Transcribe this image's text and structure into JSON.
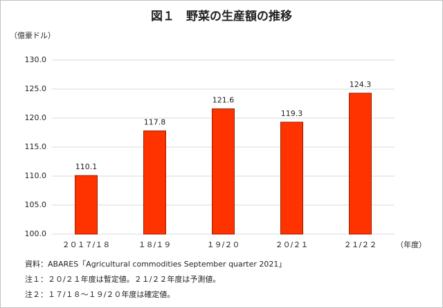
{
  "chart_data": {
    "type": "bar",
    "title": "図１　野菜の生産額の推移",
    "y_axis_label": "（億豪ドル）",
    "x_axis_label": "（年度）",
    "categories": [
      "２０１７/１８",
      "１８/１９",
      "１９/２０",
      "２０/２１",
      "２１/２２"
    ],
    "values": [
      110.1,
      117.8,
      121.6,
      119.3,
      124.3
    ],
    "color": "#ff3300",
    "ylim": [
      100,
      130
    ],
    "yticks": [
      {
        "value": 100,
        "label": "100.0"
      },
      {
        "value": 105,
        "label": "105.0"
      },
      {
        "value": 110,
        "label": "110.0"
      },
      {
        "value": 115,
        "label": "115.0"
      },
      {
        "value": 120,
        "label": "120.0"
      },
      {
        "value": 125,
        "label": "125.0"
      },
      {
        "value": 130,
        "label": "130.0"
      }
    ],
    "grid": true,
    "notes": [
      "資料：ABARES「Agricultural commodities September quarter 2021」",
      "注１：２０/２１年度は暫定値。２１/２２年度は予測値。",
      "注２：１７/１８～１９/２０年度は確定値。"
    ]
  }
}
